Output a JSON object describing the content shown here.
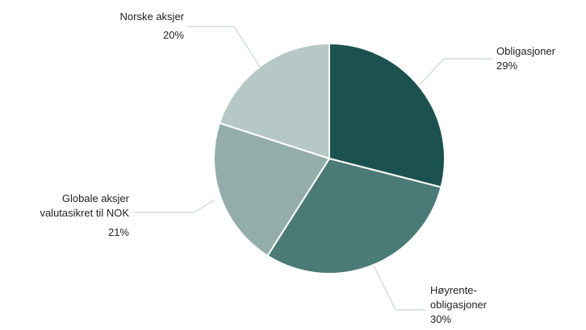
{
  "chart_data": {
    "type": "pie",
    "title": "",
    "slices": [
      {
        "label_lines": [
          "Obligasjoner"
        ],
        "value": 29,
        "value_label": "29%",
        "color": "#1b5250"
      },
      {
        "label_lines": [
          "Høyrente-",
          "obligasjoner"
        ],
        "value": 30,
        "value_label": "30%",
        "color": "#4c7b77"
      },
      {
        "label_lines": [
          "Globale aksjer",
          "valutasikret til NOK"
        ],
        "value": 21,
        "value_label": "21%",
        "color": "#93adab"
      },
      {
        "label_lines": [
          "Norske aksjer"
        ],
        "value": 20,
        "value_label": "20%",
        "color": "#b6c8c6"
      }
    ]
  }
}
